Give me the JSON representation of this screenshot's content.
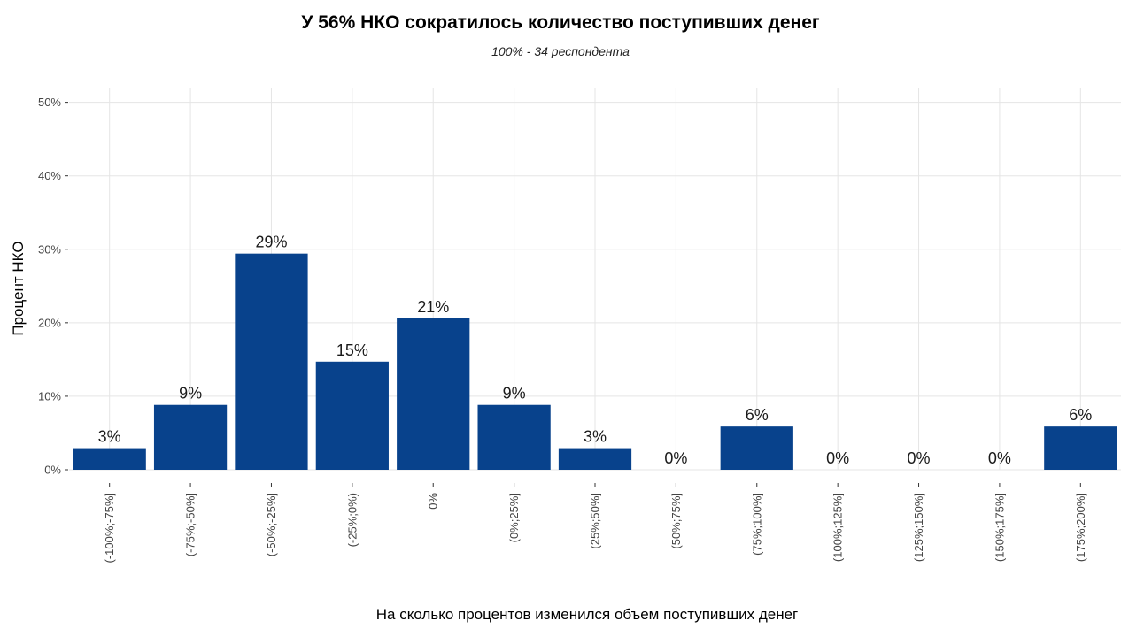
{
  "chart_data": {
    "type": "bar",
    "title": "У 56% НКО сократилось количество поступивших денег",
    "subtitle": "100% - 34 респондента",
    "xlabel": "На сколько процентов изменился объем поступивших денег",
    "ylabel": "Процент НКО",
    "categories": [
      "(-100%;-75%]",
      "(-75%;-50%]",
      "(-50%;-25%]",
      "(-25%;0%)",
      "0%",
      "(0%;25%]",
      "(25%;50%]",
      "(50%;75%]",
      "(75%;100%]",
      "(100%;125%]",
      "(125%;150%]",
      "(150%;175%]",
      "(175%;200%]"
    ],
    "values": [
      2.94,
      8.82,
      29.41,
      14.71,
      20.59,
      8.82,
      2.94,
      0,
      5.88,
      0,
      0,
      0,
      5.88
    ],
    "data_labels": [
      "3%",
      "9%",
      "29%",
      "15%",
      "21%",
      "9%",
      "3%",
      "0%",
      "6%",
      "0%",
      "0%",
      "0%",
      "6%"
    ],
    "yticks": [
      0,
      10,
      20,
      30,
      40,
      50
    ],
    "ytick_labels": [
      "0%",
      "10%",
      "20%",
      "30%",
      "40%",
      "50%"
    ],
    "ylim": [
      0,
      52
    ],
    "grid": true,
    "legend": "none",
    "colors": {
      "bar": "#08428C",
      "grid": "#E5E5E5",
      "text": "#444444"
    }
  }
}
